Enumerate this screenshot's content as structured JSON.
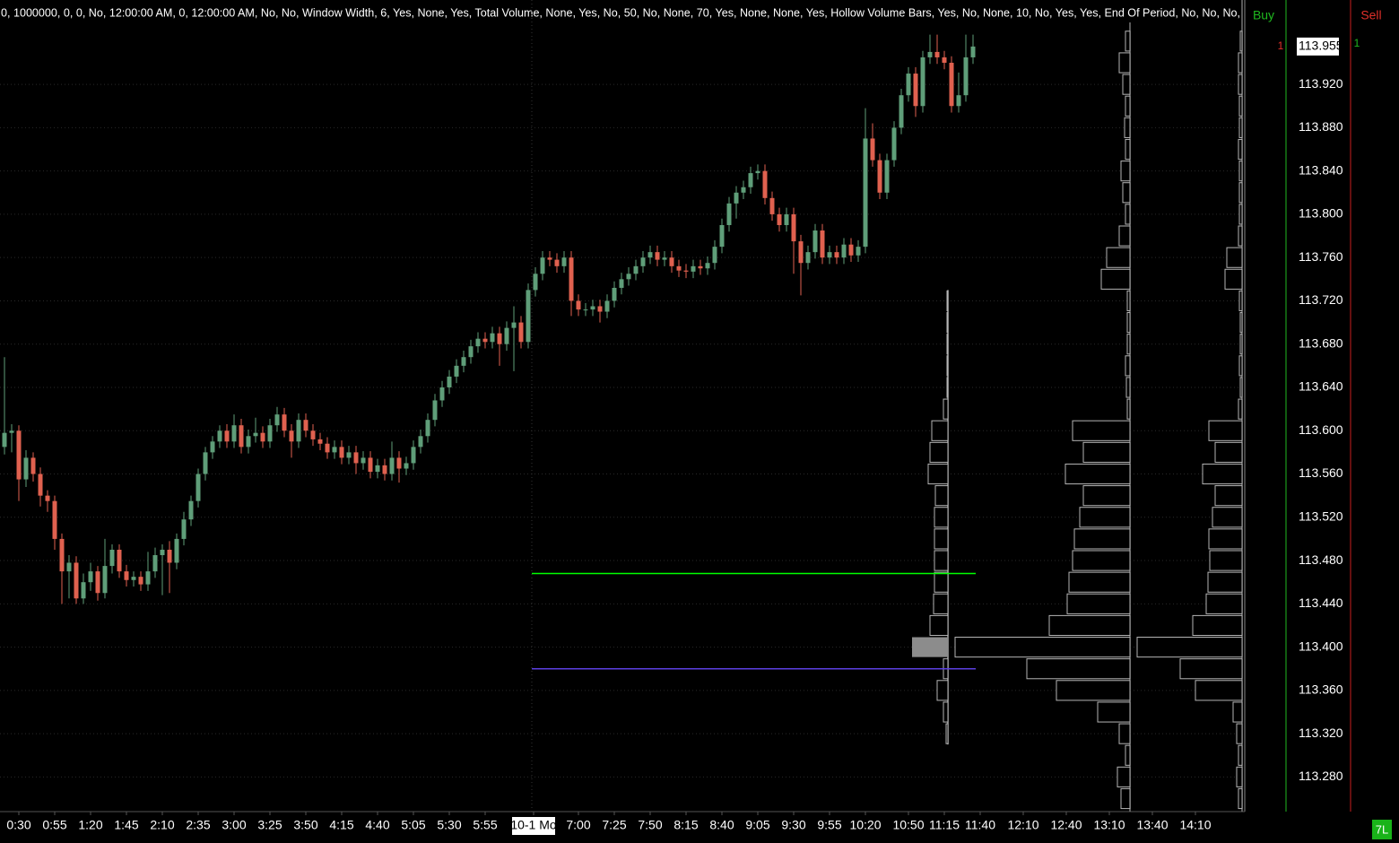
{
  "header": "0, 1000000, 0, 0, No, 12:00:00 AM, 0, 12:00:00 AM, No, No, Window Width, 6, Yes, None, Yes, Total Volume, None, Yes, No, 50, No, None, 70, Yes, None, None, Yes, Hollow Volume Bars, Yes, No, None, 10, No, Yes, Yes, End Of Period, No, No, No,",
  "order_panel": {
    "buy": "Buy",
    "sell": "Sell",
    "buy_count": 1,
    "sell_count": 1
  },
  "badge": "7L",
  "chart_data": {
    "type": "candlestick",
    "up_color": "#5f9e79",
    "down_color": "#e0614f",
    "xlim": [
      -0.625,
      172.875
    ],
    "ylim": [
      113.248,
      113.998
    ],
    "grid": true,
    "session_break": 73.5,
    "last_price": 113.955,
    "yticks": [
      {
        "value": 113.92,
        "label": "113.920"
      },
      {
        "value": 113.88,
        "label": "113.880"
      },
      {
        "value": 113.84,
        "label": "113.840"
      },
      {
        "value": 113.8,
        "label": "113.800"
      },
      {
        "value": 113.76,
        "label": "113.760"
      },
      {
        "value": 113.72,
        "label": "113.720"
      },
      {
        "value": 113.68,
        "label": "113.680"
      },
      {
        "value": 113.64,
        "label": "113.640"
      },
      {
        "value": 113.6,
        "label": "113.600"
      },
      {
        "value": 113.56,
        "label": "113.560"
      },
      {
        "value": 113.52,
        "label": "113.520"
      },
      {
        "value": 113.48,
        "label": "113.480"
      },
      {
        "value": 113.44,
        "label": "113.440"
      },
      {
        "value": 113.4,
        "label": "113.400"
      },
      {
        "value": 113.36,
        "label": "113.360"
      },
      {
        "value": 113.32,
        "label": "113.320"
      },
      {
        "value": 113.28,
        "label": "113.280"
      }
    ],
    "xticks": [
      {
        "value": 2,
        "label": "0:30"
      },
      {
        "value": 7,
        "label": "0:55"
      },
      {
        "value": 12,
        "label": "1:20"
      },
      {
        "value": 17,
        "label": "1:45"
      },
      {
        "value": 22,
        "label": "2:10"
      },
      {
        "value": 27,
        "label": "2:35"
      },
      {
        "value": 32,
        "label": "3:00"
      },
      {
        "value": 37,
        "label": "3:25"
      },
      {
        "value": 42,
        "label": "3:50"
      },
      {
        "value": 47,
        "label": "4:15"
      },
      {
        "value": 52,
        "label": "4:40"
      },
      {
        "value": 57,
        "label": "5:05"
      },
      {
        "value": 62,
        "label": "5:30"
      },
      {
        "value": 67,
        "label": "5:55"
      },
      {
        "value": 73.75,
        "label": "10-1 Mo"
      },
      {
        "value": 80,
        "label": "7:00"
      },
      {
        "value": 85,
        "label": "7:25"
      },
      {
        "value": 90,
        "label": "7:50"
      },
      {
        "value": 95,
        "label": "8:15"
      },
      {
        "value": 100,
        "label": "8:40"
      },
      {
        "value": 105,
        "label": "9:05"
      },
      {
        "value": 110,
        "label": "9:30"
      },
      {
        "value": 115,
        "label": "9:55"
      },
      {
        "value": 120,
        "label": "10:20"
      },
      {
        "value": 126,
        "label": "10:50"
      },
      {
        "value": 131,
        "label": "11:15"
      },
      {
        "value": 136,
        "label": "11:40"
      },
      {
        "value": 142,
        "label": "12:10"
      },
      {
        "value": 148,
        "label": "12:40"
      },
      {
        "value": 154,
        "label": "13:10"
      },
      {
        "value": 160,
        "label": "13:40"
      },
      {
        "value": 166,
        "label": "14:10"
      }
    ],
    "open": [
      113.585,
      113.598,
      113.6,
      113.555,
      113.575,
      113.56,
      113.54,
      113.535,
      113.5,
      113.47,
      113.478,
      113.445,
      113.46,
      113.47,
      113.45,
      113.475,
      113.49,
      113.47,
      113.462,
      113.465,
      113.458,
      113.47,
      113.485,
      113.49,
      113.478,
      113.5,
      113.518,
      113.535,
      113.56,
      113.58,
      113.59,
      113.6,
      113.59,
      113.605,
      113.585,
      113.595,
      113.598,
      113.59,
      113.605,
      113.615,
      113.6,
      113.59,
      113.61,
      113.6,
      113.592,
      113.588,
      113.58,
      113.585,
      113.575,
      113.58,
      113.57,
      113.575,
      113.562,
      113.568,
      113.56,
      113.575,
      113.565,
      113.57,
      113.585,
      113.595,
      113.61,
      113.628,
      113.64,
      113.65,
      113.66,
      113.668,
      113.678,
      113.685,
      113.682,
      113.69,
      113.68,
      113.695,
      113.7,
      113.682,
      113.73,
      113.745,
      113.76,
      113.758,
      113.752,
      113.76,
      113.72,
      113.712,
      113.712,
      113.715,
      113.71,
      113.72,
      113.732,
      113.74,
      113.745,
      113.752,
      113.76,
      113.765,
      113.758,
      113.76,
      113.752,
      113.748,
      113.747,
      113.752,
      113.75,
      113.755,
      113.77,
      113.79,
      113.81,
      113.82,
      113.825,
      113.838,
      113.84,
      113.815,
      113.8,
      113.79,
      113.8,
      113.775,
      113.755,
      113.765,
      113.785,
      113.76,
      113.765,
      113.76,
      113.772,
      113.762,
      113.77,
      113.87,
      113.85,
      113.82,
      113.85,
      113.88,
      113.91,
      113.93,
      113.9,
      113.945,
      113.95,
      113.945,
      113.94,
      113.9,
      113.91,
      113.945
    ],
    "high": [
      113.668,
      113.606,
      113.605,
      113.582,
      113.58,
      113.566,
      113.545,
      113.54,
      113.505,
      113.485,
      113.484,
      113.468,
      113.478,
      113.475,
      113.5,
      113.495,
      113.495,
      113.476,
      113.47,
      113.47,
      113.488,
      113.492,
      113.495,
      113.498,
      113.505,
      113.525,
      113.54,
      113.565,
      113.585,
      113.595,
      113.605,
      113.606,
      113.615,
      113.611,
      113.601,
      113.612,
      113.604,
      113.611,
      113.622,
      113.621,
      113.606,
      113.616,
      113.616,
      113.606,
      113.598,
      113.594,
      113.591,
      113.591,
      113.586,
      113.586,
      113.581,
      113.581,
      113.574,
      113.574,
      113.59,
      113.581,
      113.576,
      113.591,
      113.601,
      113.616,
      113.634,
      113.646,
      113.656,
      113.666,
      113.674,
      113.684,
      113.691,
      113.691,
      113.696,
      113.696,
      113.701,
      113.715,
      113.706,
      113.736,
      113.751,
      113.766,
      113.766,
      113.764,
      113.766,
      113.766,
      113.726,
      113.718,
      113.721,
      113.721,
      113.726,
      113.738,
      113.746,
      113.751,
      113.758,
      113.766,
      113.771,
      113.771,
      113.766,
      113.766,
      113.758,
      113.754,
      113.758,
      113.758,
      113.761,
      113.776,
      113.796,
      113.816,
      113.826,
      113.831,
      113.844,
      113.846,
      113.846,
      113.821,
      113.806,
      113.806,
      113.806,
      113.781,
      113.771,
      113.791,
      113.791,
      113.771,
      113.771,
      113.778,
      113.778,
      113.776,
      113.898,
      113.884,
      113.856,
      113.856,
      113.886,
      113.916,
      113.936,
      113.936,
      113.951,
      113.966,
      113.966,
      113.951,
      113.946,
      113.931,
      113.966,
      113.966
    ],
    "low": [
      113.578,
      113.58,
      113.535,
      113.548,
      113.553,
      113.53,
      113.525,
      113.49,
      113.44,
      113.445,
      113.44,
      113.44,
      113.452,
      113.443,
      113.445,
      113.468,
      113.464,
      113.456,
      113.456,
      113.452,
      113.452,
      113.464,
      113.448,
      113.45,
      113.472,
      113.494,
      113.512,
      113.529,
      113.554,
      113.574,
      113.584,
      113.584,
      113.584,
      113.579,
      113.579,
      113.589,
      113.584,
      113.584,
      113.599,
      113.594,
      113.575,
      113.584,
      113.594,
      113.586,
      113.582,
      113.574,
      113.574,
      113.569,
      113.569,
      113.56,
      113.564,
      113.556,
      113.556,
      113.554,
      113.554,
      113.552,
      113.559,
      113.564,
      113.579,
      113.589,
      113.604,
      113.622,
      113.634,
      113.644,
      113.654,
      113.662,
      113.672,
      113.676,
      113.676,
      113.66,
      113.674,
      113.655,
      113.676,
      113.676,
      113.724,
      113.739,
      113.752,
      113.746,
      113.746,
      113.706,
      113.706,
      113.706,
      113.706,
      113.7,
      113.704,
      113.714,
      113.726,
      113.734,
      113.739,
      113.746,
      113.754,
      113.752,
      113.752,
      113.746,
      113.742,
      113.741,
      113.741,
      113.744,
      113.744,
      113.749,
      113.764,
      113.784,
      113.796,
      113.814,
      113.819,
      113.832,
      113.809,
      113.794,
      113.784,
      113.784,
      113.745,
      113.725,
      113.749,
      113.759,
      113.754,
      113.754,
      113.754,
      113.754,
      113.756,
      113.756,
      113.764,
      113.844,
      113.814,
      113.814,
      113.844,
      113.874,
      113.904,
      113.89,
      113.894,
      113.939,
      113.939,
      113.934,
      113.894,
      113.894,
      113.904,
      113.939
    ],
    "close": [
      113.598,
      113.6,
      113.555,
      113.575,
      113.56,
      113.54,
      113.535,
      113.5,
      113.47,
      113.478,
      113.445,
      113.46,
      113.47,
      113.45,
      113.475,
      113.49,
      113.47,
      113.462,
      113.465,
      113.458,
      113.47,
      113.485,
      113.49,
      113.478,
      113.5,
      113.518,
      113.535,
      113.56,
      113.58,
      113.59,
      113.6,
      113.59,
      113.605,
      113.585,
      113.595,
      113.598,
      113.59,
      113.605,
      113.615,
      113.6,
      113.59,
      113.61,
      113.6,
      113.592,
      113.588,
      113.58,
      113.585,
      113.575,
      113.58,
      113.57,
      113.575,
      113.562,
      113.568,
      113.56,
      113.575,
      113.565,
      113.57,
      113.585,
      113.595,
      113.61,
      113.628,
      113.64,
      113.65,
      113.66,
      113.668,
      113.678,
      113.685,
      113.682,
      113.69,
      113.68,
      113.695,
      113.7,
      113.682,
      113.73,
      113.745,
      113.76,
      113.758,
      113.752,
      113.76,
      113.72,
      113.712,
      113.712,
      113.715,
      113.71,
      113.72,
      113.732,
      113.74,
      113.745,
      113.752,
      113.76,
      113.765,
      113.758,
      113.76,
      113.752,
      113.748,
      113.747,
      113.752,
      113.75,
      113.755,
      113.77,
      113.79,
      113.81,
      113.82,
      113.825,
      113.838,
      113.84,
      113.815,
      113.8,
      113.79,
      113.8,
      113.775,
      113.755,
      113.765,
      113.785,
      113.76,
      113.765,
      113.76,
      113.772,
      113.762,
      113.77,
      113.87,
      113.85,
      113.82,
      113.85,
      113.88,
      113.91,
      113.93,
      113.9,
      113.945,
      113.95,
      113.945,
      113.94,
      113.9,
      113.91,
      113.945,
      113.955
    ],
    "levels": [
      {
        "value": 113.468,
        "color": "#00ff00"
      },
      {
        "value": 113.38,
        "color": "#5b3fe0"
      }
    ],
    "volume_profiles": [
      {
        "prices": [
          113.72,
          113.7,
          113.68,
          113.66,
          113.64,
          113.62,
          113.6,
          113.58,
          113.56,
          113.54,
          113.52,
          113.5,
          113.48,
          113.46,
          113.44,
          113.42,
          113.4,
          113.38,
          113.36,
          113.34,
          113.32
        ],
        "volumes": [
          1,
          1,
          1,
          1,
          1,
          5,
          18,
          20,
          22,
          14,
          15,
          15,
          15,
          15,
          16,
          20,
          40,
          5,
          12,
          5,
          2
        ],
        "poc_color": "#8c8c8c"
      },
      {
        "prices": [
          113.96,
          113.94,
          113.92,
          113.9,
          113.88,
          113.86,
          113.84,
          113.82,
          113.8,
          113.78,
          113.76,
          113.74,
          113.72,
          113.7,
          113.68,
          113.66,
          113.64,
          113.62,
          113.6,
          113.58,
          113.56,
          113.54,
          113.52,
          113.5,
          113.48,
          113.46,
          113.44,
          113.42,
          113.4,
          113.38,
          113.36,
          113.34,
          113.32,
          113.3,
          113.28,
          113.26
        ],
        "volumes": [
          5,
          12,
          8,
          5,
          6,
          5,
          10,
          8,
          5,
          12,
          26,
          32,
          3,
          3,
          3,
          5,
          4,
          3,
          64,
          52,
          72,
          52,
          56,
          62,
          64,
          68,
          70,
          90,
          195,
          115,
          82,
          36,
          12,
          5,
          14,
          10
        ]
      },
      {
        "prices": [
          113.96,
          113.94,
          113.92,
          113.9,
          113.88,
          113.86,
          113.84,
          113.82,
          113.8,
          113.78,
          113.76,
          113.74,
          113.72,
          113.7,
          113.68,
          113.66,
          113.64,
          113.62,
          113.6,
          113.58,
          113.56,
          113.54,
          113.52,
          113.5,
          113.48,
          113.46,
          113.44,
          113.42,
          113.4,
          113.38,
          113.36,
          113.34,
          113.32,
          113.3,
          113.28,
          113.26
        ],
        "volumes": [
          2,
          4,
          4,
          3,
          3,
          4,
          3,
          3,
          3,
          4,
          17,
          19,
          3,
          2,
          2,
          3,
          2,
          4,
          37,
          30,
          44,
          30,
          33,
          37,
          36,
          38,
          40,
          55,
          117,
          69,
          52,
          10,
          6,
          4,
          6,
          4
        ]
      }
    ]
  }
}
